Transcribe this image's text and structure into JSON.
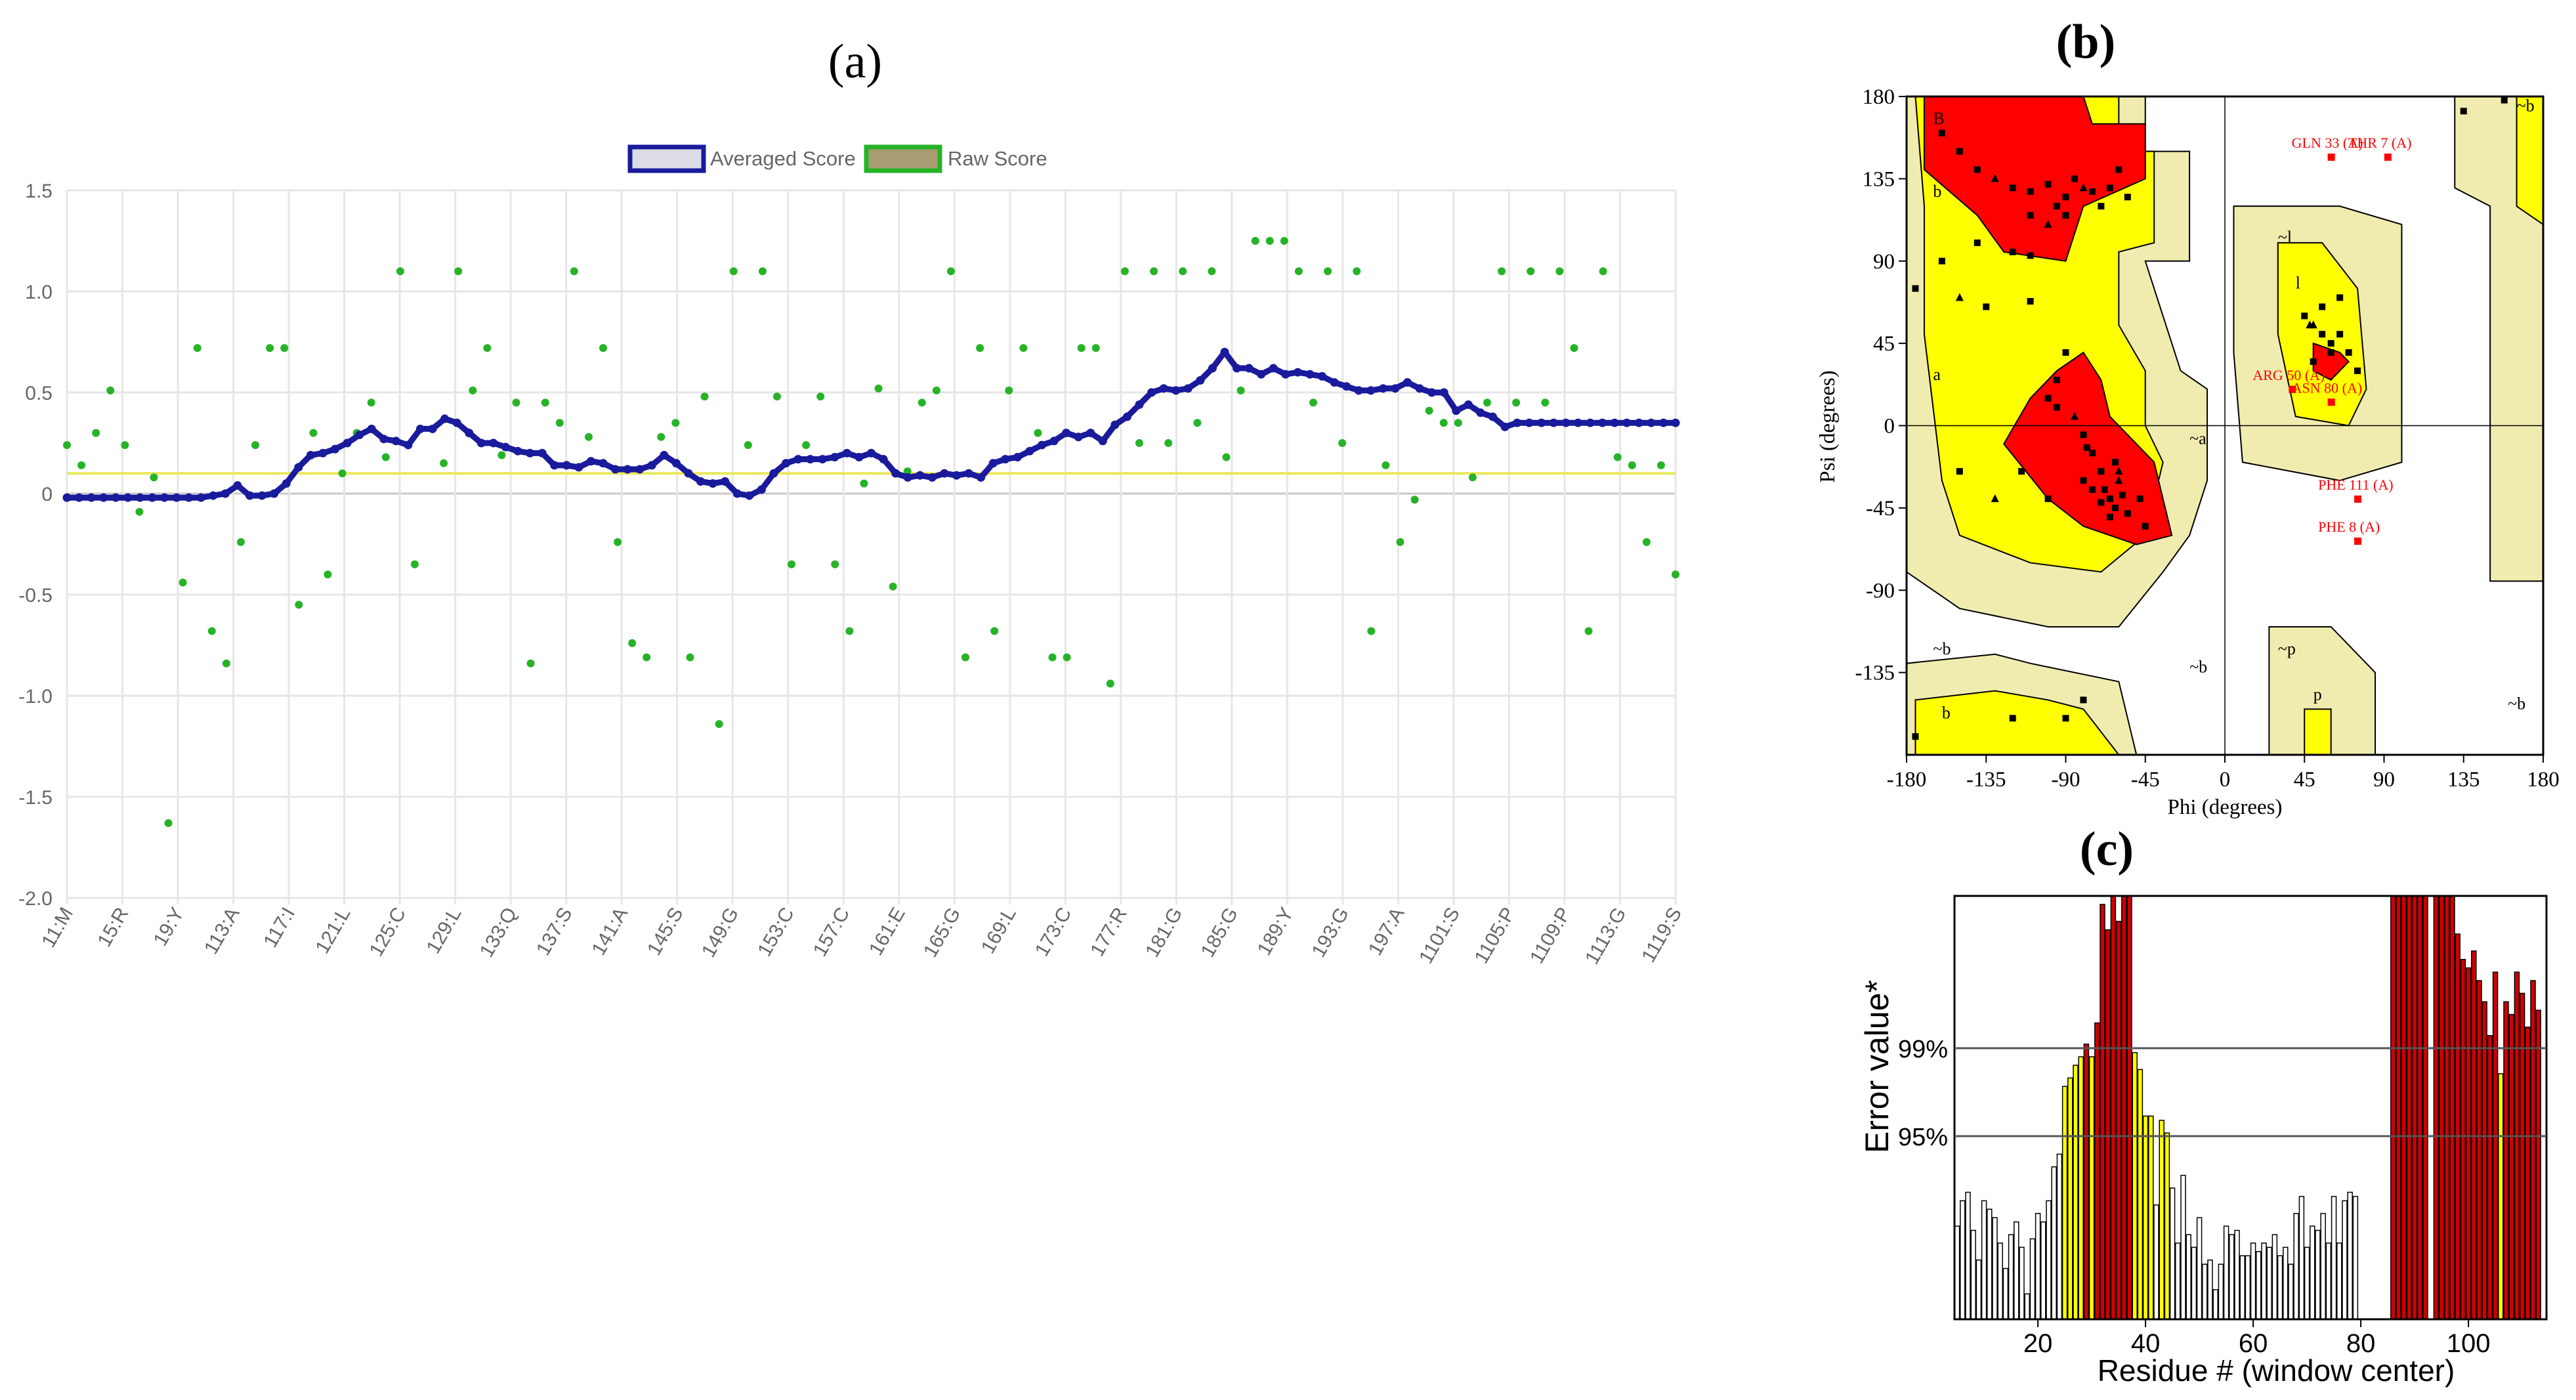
{
  "panels": {
    "a": "(a)",
    "b": "(b)",
    "c": "(c)"
  },
  "chart_data": [
    {
      "id": "a",
      "type": "line",
      "legend": [
        "Averaged Score",
        "Raw Score"
      ],
      "colors": {
        "averaged": "#1a1a9c",
        "raw": "#27b327",
        "threshold": "#e8e85a"
      },
      "ylim": [
        -2.0,
        1.5
      ],
      "yticks": [
        "1.5",
        "1.0",
        "0.5",
        "0",
        "-0.5",
        "-1.0",
        "-1.5",
        "-2.0"
      ],
      "xticks": [
        "11:M",
        "15:R",
        "19:Y",
        "113:A",
        "117:I",
        "121:L",
        "125:C",
        "129:L",
        "133:Q",
        "137:S",
        "141:A",
        "145:S",
        "149:G",
        "153:C",
        "157:C",
        "161:E",
        "165:G",
        "169:L",
        "173:C",
        "177:R",
        "181:G",
        "185:G",
        "189:Y",
        "193:G",
        "197:A",
        "1101:S",
        "1105:P",
        "1109:P",
        "1113:G",
        "1119:S"
      ],
      "threshold": 0.1,
      "averaged": [
        -0.02,
        -0.02,
        -0.02,
        -0.02,
        -0.02,
        -0.02,
        -0.02,
        -0.02,
        -0.02,
        -0.02,
        -0.02,
        -0.02,
        -0.01,
        0.0,
        0.04,
        -0.01,
        -0.01,
        0.0,
        0.05,
        0.13,
        0.19,
        0.2,
        0.22,
        0.25,
        0.29,
        0.32,
        0.27,
        0.26,
        0.24,
        0.32,
        0.32,
        0.37,
        0.35,
        0.3,
        0.25,
        0.25,
        0.23,
        0.21,
        0.2,
        0.2,
        0.14,
        0.14,
        0.13,
        0.16,
        0.15,
        0.12,
        0.12,
        0.12,
        0.14,
        0.19,
        0.15,
        0.1,
        0.06,
        0.05,
        0.06,
        0.0,
        -0.01,
        0.02,
        0.1,
        0.15,
        0.17,
        0.17,
        0.17,
        0.18,
        0.2,
        0.18,
        0.2,
        0.17,
        0.1,
        0.08,
        0.09,
        0.08,
        0.1,
        0.09,
        0.1,
        0.08,
        0.15,
        0.17,
        0.18,
        0.21,
        0.24,
        0.26,
        0.3,
        0.28,
        0.3,
        0.26,
        0.34,
        0.38,
        0.44,
        0.5,
        0.52,
        0.51,
        0.52,
        0.56,
        0.62,
        0.7,
        0.62,
        0.62,
        0.59,
        0.62,
        0.59,
        0.6,
        0.59,
        0.58,
        0.55,
        0.53,
        0.51,
        0.51,
        0.52,
        0.52,
        0.55,
        0.52,
        0.5,
        0.5,
        0.41,
        0.44,
        0.4,
        0.38,
        0.33,
        0.35,
        0.35,
        0.35,
        0.35,
        0.35,
        0.35,
        0.35,
        0.35,
        0.35,
        0.35,
        0.35,
        0.35,
        0.35,
        0.35
      ],
      "raw": [
        [
          0,
          0.24
        ],
        [
          1,
          0.14
        ],
        [
          2,
          0.3
        ],
        [
          3,
          0.51
        ],
        [
          4,
          0.24
        ],
        [
          5,
          -0.09
        ],
        [
          6,
          0.08
        ],
        [
          7,
          -1.63
        ],
        [
          8,
          -0.44
        ],
        [
          9,
          0.72
        ],
        [
          10,
          -0.68
        ],
        [
          11,
          -0.84
        ],
        [
          12,
          -0.24
        ],
        [
          13,
          0.24
        ],
        [
          14,
          0.72
        ],
        [
          15,
          0.72
        ],
        [
          16,
          -0.55
        ],
        [
          17,
          0.3
        ],
        [
          18,
          -0.4
        ],
        [
          19,
          0.1
        ],
        [
          20,
          0.3
        ],
        [
          21,
          0.45
        ],
        [
          22,
          0.18
        ],
        [
          23,
          1.1
        ],
        [
          24,
          -0.35
        ],
        [
          26,
          0.15
        ],
        [
          27,
          1.1
        ],
        [
          28,
          0.51
        ],
        [
          29,
          0.72
        ],
        [
          30,
          0.19
        ],
        [
          31,
          0.45
        ],
        [
          32,
          -0.84
        ],
        [
          33,
          0.45
        ],
        [
          34,
          0.35
        ],
        [
          35,
          1.1
        ],
        [
          36,
          0.28
        ],
        [
          37,
          0.72
        ],
        [
          38,
          -0.24
        ],
        [
          39,
          -0.74
        ],
        [
          40,
          -0.81
        ],
        [
          41,
          0.28
        ],
        [
          42,
          0.35
        ],
        [
          43,
          -0.81
        ],
        [
          44,
          0.48
        ],
        [
          45,
          -1.14
        ],
        [
          46,
          1.1
        ],
        [
          47,
          0.24
        ],
        [
          48,
          1.1
        ],
        [
          49,
          0.48
        ],
        [
          50,
          -0.35
        ],
        [
          51,
          0.24
        ],
        [
          52,
          0.48
        ],
        [
          53,
          -0.35
        ],
        [
          54,
          -0.68
        ],
        [
          55,
          0.05
        ],
        [
          56,
          0.52
        ],
        [
          57,
          -0.46
        ],
        [
          58,
          0.11
        ],
        [
          59,
          0.45
        ],
        [
          60,
          0.51
        ],
        [
          61,
          1.1
        ],
        [
          62,
          -0.81
        ],
        [
          63,
          0.72
        ],
        [
          64,
          -0.68
        ],
        [
          65,
          0.51
        ],
        [
          66,
          0.72
        ],
        [
          67,
          0.3
        ],
        [
          68,
          -0.81
        ],
        [
          69,
          -0.81
        ],
        [
          70,
          0.72
        ],
        [
          71,
          0.72
        ],
        [
          72,
          -0.94
        ],
        [
          73,
          1.1
        ],
        [
          74,
          0.25
        ],
        [
          75,
          1.1
        ],
        [
          76,
          0.25
        ],
        [
          77,
          1.1
        ],
        [
          78,
          0.35
        ],
        [
          79,
          1.1
        ],
        [
          80,
          0.18
        ],
        [
          81,
          0.51
        ],
        [
          82,
          1.25
        ],
        [
          83,
          1.25
        ],
        [
          84,
          1.25
        ],
        [
          85,
          1.1
        ],
        [
          86,
          0.45
        ],
        [
          87,
          1.1
        ],
        [
          88,
          0.25
        ],
        [
          89,
          1.1
        ],
        [
          90,
          -0.68
        ],
        [
          91,
          0.14
        ],
        [
          92,
          -0.24
        ],
        [
          93,
          -0.03
        ],
        [
          94,
          0.41
        ],
        [
          95,
          0.35
        ],
        [
          96,
          0.35
        ],
        [
          97,
          0.08
        ],
        [
          98,
          0.45
        ],
        [
          99,
          1.1
        ],
        [
          100,
          0.45
        ],
        [
          101,
          1.1
        ],
        [
          102,
          0.45
        ],
        [
          103,
          1.1
        ],
        [
          104,
          0.72
        ],
        [
          105,
          -0.68
        ],
        [
          106,
          1.1
        ],
        [
          107,
          0.18
        ],
        [
          108,
          0.14
        ],
        [
          109,
          -0.24
        ],
        [
          110,
          0.14
        ],
        [
          111,
          -0.4
        ]
      ]
    },
    {
      "id": "b",
      "type": "scatter",
      "xlabel": "Phi (degrees)",
      "ylabel": "Psi (degrees)",
      "xlim": [
        -180,
        180
      ],
      "ylim": [
        -180,
        180
      ],
      "xticks": [
        "-180",
        "-135",
        "-90",
        "-45",
        "0",
        "45",
        "90",
        "135",
        "180"
      ],
      "yticks": [
        "180",
        "135",
        "90",
        "45",
        "0",
        "-45",
        "-90",
        "-135"
      ],
      "colors": {
        "core": "#ff0000",
        "allowed": "#ffff00",
        "generous": "#f0ecb0",
        "points": "#000000",
        "outliers": "#ff0000"
      },
      "region_labels": [
        "B",
        "b",
        "a",
        "b",
        "~b",
        "~b",
        "~a",
        "~l",
        "l",
        "~p",
        "p",
        "~b",
        "~b"
      ],
      "labeled_residues": [
        {
          "label": "GLN 33 (A)",
          "phi": 60,
          "psi": 147
        },
        {
          "label": "THR 7 (A)",
          "phi": 92,
          "psi": 147
        },
        {
          "label": "ARG 50 (A)",
          "phi": 38,
          "psi": 20
        },
        {
          "label": "ASN 80 (A)",
          "phi": 60,
          "psi": 13
        },
        {
          "label": "PHE 111 (A)",
          "phi": 75,
          "psi": -40
        },
        {
          "label": "PHE 8 (A)",
          "phi": 75,
          "psi": -63
        }
      ],
      "points": [
        [
          -160,
          160
        ],
        [
          -150,
          150
        ],
        [
          -140,
          140
        ],
        [
          -130,
          135
        ],
        [
          -120,
          130
        ],
        [
          -110,
          128
        ],
        [
          -100,
          132
        ],
        [
          -95,
          120
        ],
        [
          -90,
          125
        ],
        [
          -85,
          135
        ],
        [
          -80,
          130
        ],
        [
          -75,
          128
        ],
        [
          -70,
          120
        ],
        [
          -65,
          130
        ],
        [
          -60,
          140
        ],
        [
          -55,
          125
        ],
        [
          -110,
          115
        ],
        [
          -100,
          110
        ],
        [
          -90,
          115
        ],
        [
          -120,
          95
        ],
        [
          -110,
          93
        ],
        [
          -140,
          100
        ],
        [
          -160,
          90
        ],
        [
          -175,
          75
        ],
        [
          -150,
          70
        ],
        [
          -135,
          65
        ],
        [
          -110,
          68
        ],
        [
          -90,
          40
        ],
        [
          -95,
          25
        ],
        [
          -100,
          15
        ],
        [
          -95,
          10
        ],
        [
          -85,
          5
        ],
        [
          -80,
          -5
        ],
        [
          -75,
          -15
        ],
        [
          -70,
          -25
        ],
        [
          -68,
          -35
        ],
        [
          -65,
          -40
        ],
        [
          -62,
          -45
        ],
        [
          -60,
          -30
        ],
        [
          -70,
          -42
        ],
        [
          -75,
          -35
        ],
        [
          -80,
          -30
        ],
        [
          -58,
          -38
        ],
        [
          -55,
          -48
        ],
        [
          -65,
          -50
        ],
        [
          -60,
          -25
        ],
        [
          -78,
          -12
        ],
        [
          -62,
          -20
        ],
        [
          -48,
          -40
        ],
        [
          -45,
          -55
        ],
        [
          -100,
          -40
        ],
        [
          -115,
          -25
        ],
        [
          -130,
          -40
        ],
        [
          -150,
          -25
        ],
        [
          -120,
          -160
        ],
        [
          -80,
          -150
        ],
        [
          -90,
          -160
        ],
        [
          -175,
          -170
        ],
        [
          45,
          60
        ],
        [
          50,
          55
        ],
        [
          55,
          50
        ],
        [
          60,
          45
        ],
        [
          65,
          50
        ],
        [
          70,
          40
        ],
        [
          55,
          65
        ],
        [
          50,
          35
        ],
        [
          48,
          55
        ],
        [
          60,
          40
        ],
        [
          65,
          70
        ],
        [
          75,
          30
        ],
        [
          135,
          172
        ],
        [
          158,
          178
        ]
      ]
    },
    {
      "id": "c",
      "type": "bar",
      "xlabel": "Residue # (window center)",
      "ylabel": "Error value*",
      "xticks": [
        "20",
        "40",
        "60",
        "80",
        "100"
      ],
      "thresholds": [
        "99%",
        "95%"
      ],
      "colors": {
        "low": "#ffffff",
        "mid": "#ffff00",
        "high": "#d00000"
      },
      "values": [
        [
          5,
          0.22
        ],
        [
          6,
          0.28
        ],
        [
          7,
          0.3
        ],
        [
          8,
          0.21
        ],
        [
          9,
          0.14
        ],
        [
          10,
          0.28
        ],
        [
          11,
          0.26
        ],
        [
          12,
          0.24
        ],
        [
          13,
          0.18
        ],
        [
          14,
          0.12
        ],
        [
          15,
          0.2
        ],
        [
          16,
          0.23
        ],
        [
          17,
          0.17
        ],
        [
          18,
          0.06
        ],
        [
          19,
          0.19
        ],
        [
          20,
          0.25
        ],
        [
          21,
          0.23
        ],
        [
          22,
          0.28
        ],
        [
          23,
          0.36
        ],
        [
          24,
          0.39
        ],
        [
          25,
          0.55
        ],
        [
          26,
          0.57
        ],
        [
          27,
          0.6
        ],
        [
          28,
          0.62
        ],
        [
          29,
          0.65
        ],
        [
          30,
          0.62
        ],
        [
          31,
          0.7
        ],
        [
          32,
          0.98
        ],
        [
          33,
          0.92
        ],
        [
          34,
          1.0
        ],
        [
          35,
          0.94
        ],
        [
          36,
          1.0
        ],
        [
          37,
          1.0
        ],
        [
          38,
          0.63
        ],
        [
          39,
          0.59
        ],
        [
          40,
          0.48
        ],
        [
          41,
          0.48
        ],
        [
          42,
          0.27
        ],
        [
          43,
          0.47
        ],
        [
          44,
          0.44
        ],
        [
          45,
          0.31
        ],
        [
          46,
          0.18
        ],
        [
          47,
          0.34
        ],
        [
          48,
          0.2
        ],
        [
          49,
          0.17
        ],
        [
          50,
          0.24
        ],
        [
          51,
          0.13
        ],
        [
          52,
          0.14
        ],
        [
          53,
          0.07
        ],
        [
          54,
          0.13
        ],
        [
          55,
          0.22
        ],
        [
          56,
          0.2
        ],
        [
          57,
          0.21
        ],
        [
          58,
          0.15
        ],
        [
          59,
          0.15
        ],
        [
          60,
          0.18
        ],
        [
          61,
          0.16
        ],
        [
          62,
          0.18
        ],
        [
          63,
          0.17
        ],
        [
          64,
          0.2
        ],
        [
          65,
          0.15
        ],
        [
          66,
          0.17
        ],
        [
          67,
          0.13
        ],
        [
          68,
          0.25
        ],
        [
          69,
          0.29
        ],
        [
          70,
          0.17
        ],
        [
          71,
          0.22
        ],
        [
          72,
          0.21
        ],
        [
          73,
          0.25
        ],
        [
          74,
          0.18
        ],
        [
          75,
          0.29
        ],
        [
          76,
          0.18
        ],
        [
          77,
          0.28
        ],
        [
          78,
          0.3
        ],
        [
          79,
          0.29
        ],
        [
          86,
          1.0
        ],
        [
          87,
          1.0
        ],
        [
          88,
          1.0
        ],
        [
          89,
          1.0
        ],
        [
          90,
          1.0
        ],
        [
          91,
          1.0
        ],
        [
          92,
          1.0
        ],
        [
          94,
          1.0
        ],
        [
          95,
          1.0
        ],
        [
          96,
          1.0
        ],
        [
          97,
          1.0
        ],
        [
          98,
          0.91
        ],
        [
          99,
          0.85
        ],
        [
          100,
          0.83
        ],
        [
          101,
          0.87
        ],
        [
          102,
          0.8
        ],
        [
          103,
          0.75
        ],
        [
          104,
          0.67
        ],
        [
          105,
          0.82
        ],
        [
          106,
          0.58
        ],
        [
          107,
          0.75
        ],
        [
          108,
          0.72
        ],
        [
          109,
          0.82
        ],
        [
          110,
          0.77
        ],
        [
          111,
          0.69
        ],
        [
          112,
          0.8
        ],
        [
          113,
          0.73
        ]
      ]
    }
  ]
}
